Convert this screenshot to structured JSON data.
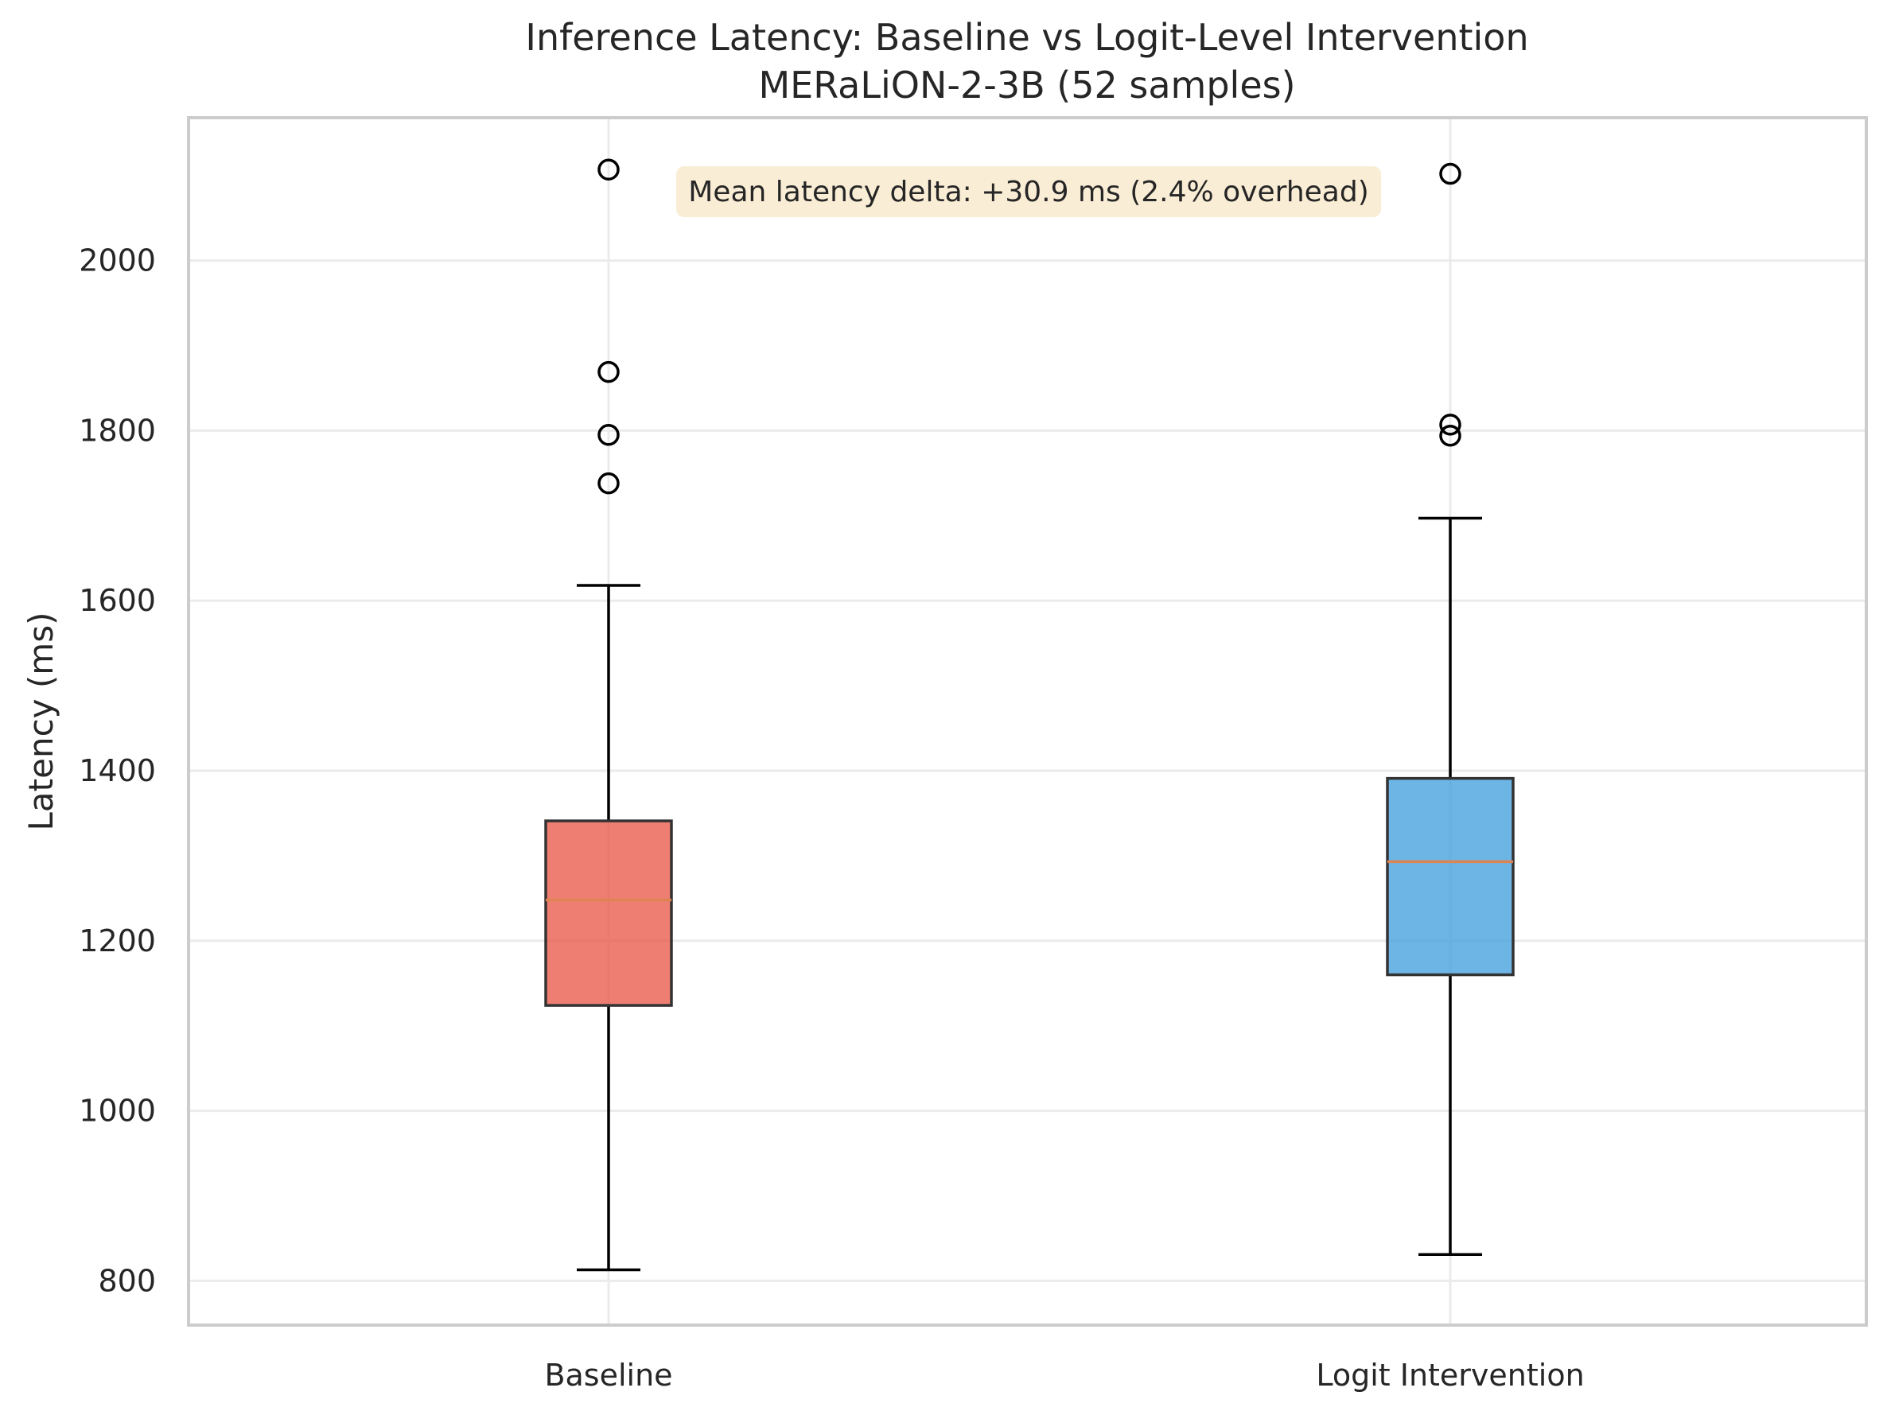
{
  "chart_data": {
    "type": "box",
    "title": "Inference Latency: Baseline vs Logit-Level Intervention",
    "subtitle": "MERaLiON-2-3B (52 samples)",
    "xlabel": "",
    "ylabel": "Latency (ms)",
    "ylim": [
      748,
      2168
    ],
    "yticks": [
      800,
      1000,
      1200,
      1400,
      1600,
      1800,
      2000
    ],
    "grid": true,
    "annotation": "Mean latency delta: +30.9 ms (2.4% overhead)",
    "colors": {
      "baseline_fill": "#e74c3c",
      "intervention_fill": "#3498db",
      "median_line": "#dd8452",
      "annotation_bg": "#f5deb3",
      "grid": "#ebebeb",
      "frame": "#cccccc"
    },
    "series": [
      {
        "name": "Baseline",
        "whisker_low": 813,
        "q1": 1124,
        "median": 1248,
        "q3": 1341,
        "whisker_high": 1618,
        "outliers": [
          1738,
          1795,
          1869,
          2107
        ]
      },
      {
        "name": "Logit Intervention",
        "whisker_low": 831,
        "q1": 1160,
        "median": 1293,
        "q3": 1391,
        "whisker_high": 1697,
        "outliers": [
          1794,
          1807,
          2102
        ]
      }
    ]
  }
}
